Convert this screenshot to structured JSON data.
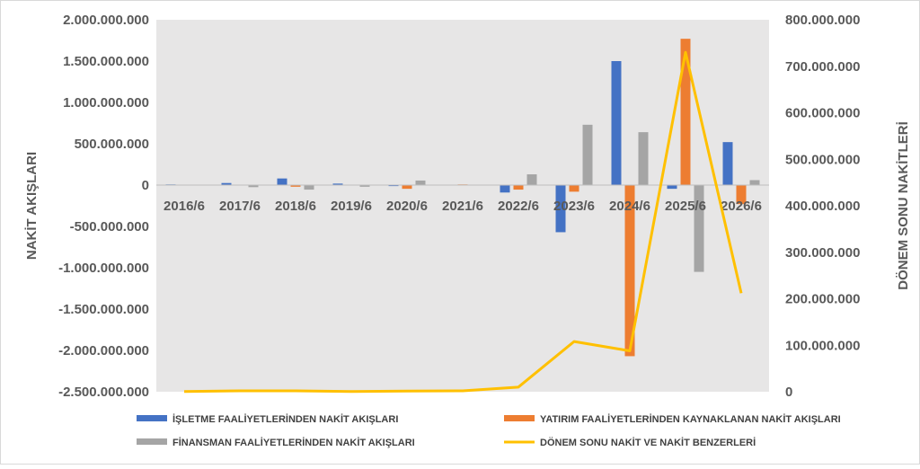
{
  "chart_data": {
    "type": "bar+line",
    "categories": [
      "2016/6",
      "2017/6",
      "2018/6",
      "2019/6",
      "2020/6",
      "2021/6",
      "2022/6",
      "2023/6",
      "2024/6",
      "2025/6",
      "2026/6"
    ],
    "series": [
      {
        "name": "İŞLETME FAALİYETLERİNDEN NAKİT AKIŞLARI",
        "type": "bar",
        "axis": "left",
        "color": "#4472C4",
        "values": [
          8000000,
          25000000,
          80000000,
          18000000,
          -12000000,
          0,
          -90000000,
          -570000000,
          1500000000,
          -45000000,
          520000000
        ]
      },
      {
        "name": "YATIRIM FAALİYETLERİNDEN KAYNAKLANAN NAKİT AKIŞLARI",
        "type": "bar",
        "axis": "left",
        "color": "#ED7D31",
        "values": [
          0,
          0,
          -20000000,
          0,
          -45000000,
          8000000,
          -55000000,
          -80000000,
          -2070000000,
          1770000000,
          -230000000
        ]
      },
      {
        "name": "FİNANSMAN FAALİYETLERİNDEN NAKİT AKIŞLARI",
        "type": "bar",
        "axis": "left",
        "color": "#A5A5A5",
        "values": [
          0,
          -25000000,
          -55000000,
          -20000000,
          55000000,
          0,
          130000000,
          730000000,
          640000000,
          -1050000000,
          60000000
        ]
      },
      {
        "name": "DÖNEM SONU NAKİT VE NAKİT BENZERLERİ",
        "type": "line",
        "axis": "right",
        "color": "#FFC000",
        "values": [
          500000,
          2000000,
          2000000,
          500000,
          1500000,
          2000000,
          10000000,
          108000000,
          88000000,
          730000000,
          212000000
        ]
      }
    ],
    "ylabel": "NAKİT AKIŞLARI",
    "y2label": "DÖNEM SONU NAKİTLERİ",
    "ylim": [
      -2500000000,
      2000000000
    ],
    "y2lim": [
      0,
      800000000
    ],
    "yticks": [
      "2.000.000.000",
      "1.500.000.000",
      "1.000.000.000",
      "500.000.000",
      "0",
      "-500.000.000",
      "-1.000.000.000",
      "-1.500.000.000",
      "-2.000.000.000",
      "-2.500.000.000"
    ],
    "y2ticks": [
      "800.000.000",
      "700.000.000",
      "600.000.000",
      "500.000.000",
      "400.000.000",
      "300.000.000",
      "200.000.000",
      "100.000.000",
      "0"
    ],
    "plot_background": "#E7E6E6",
    "legend_position": "bottom"
  }
}
